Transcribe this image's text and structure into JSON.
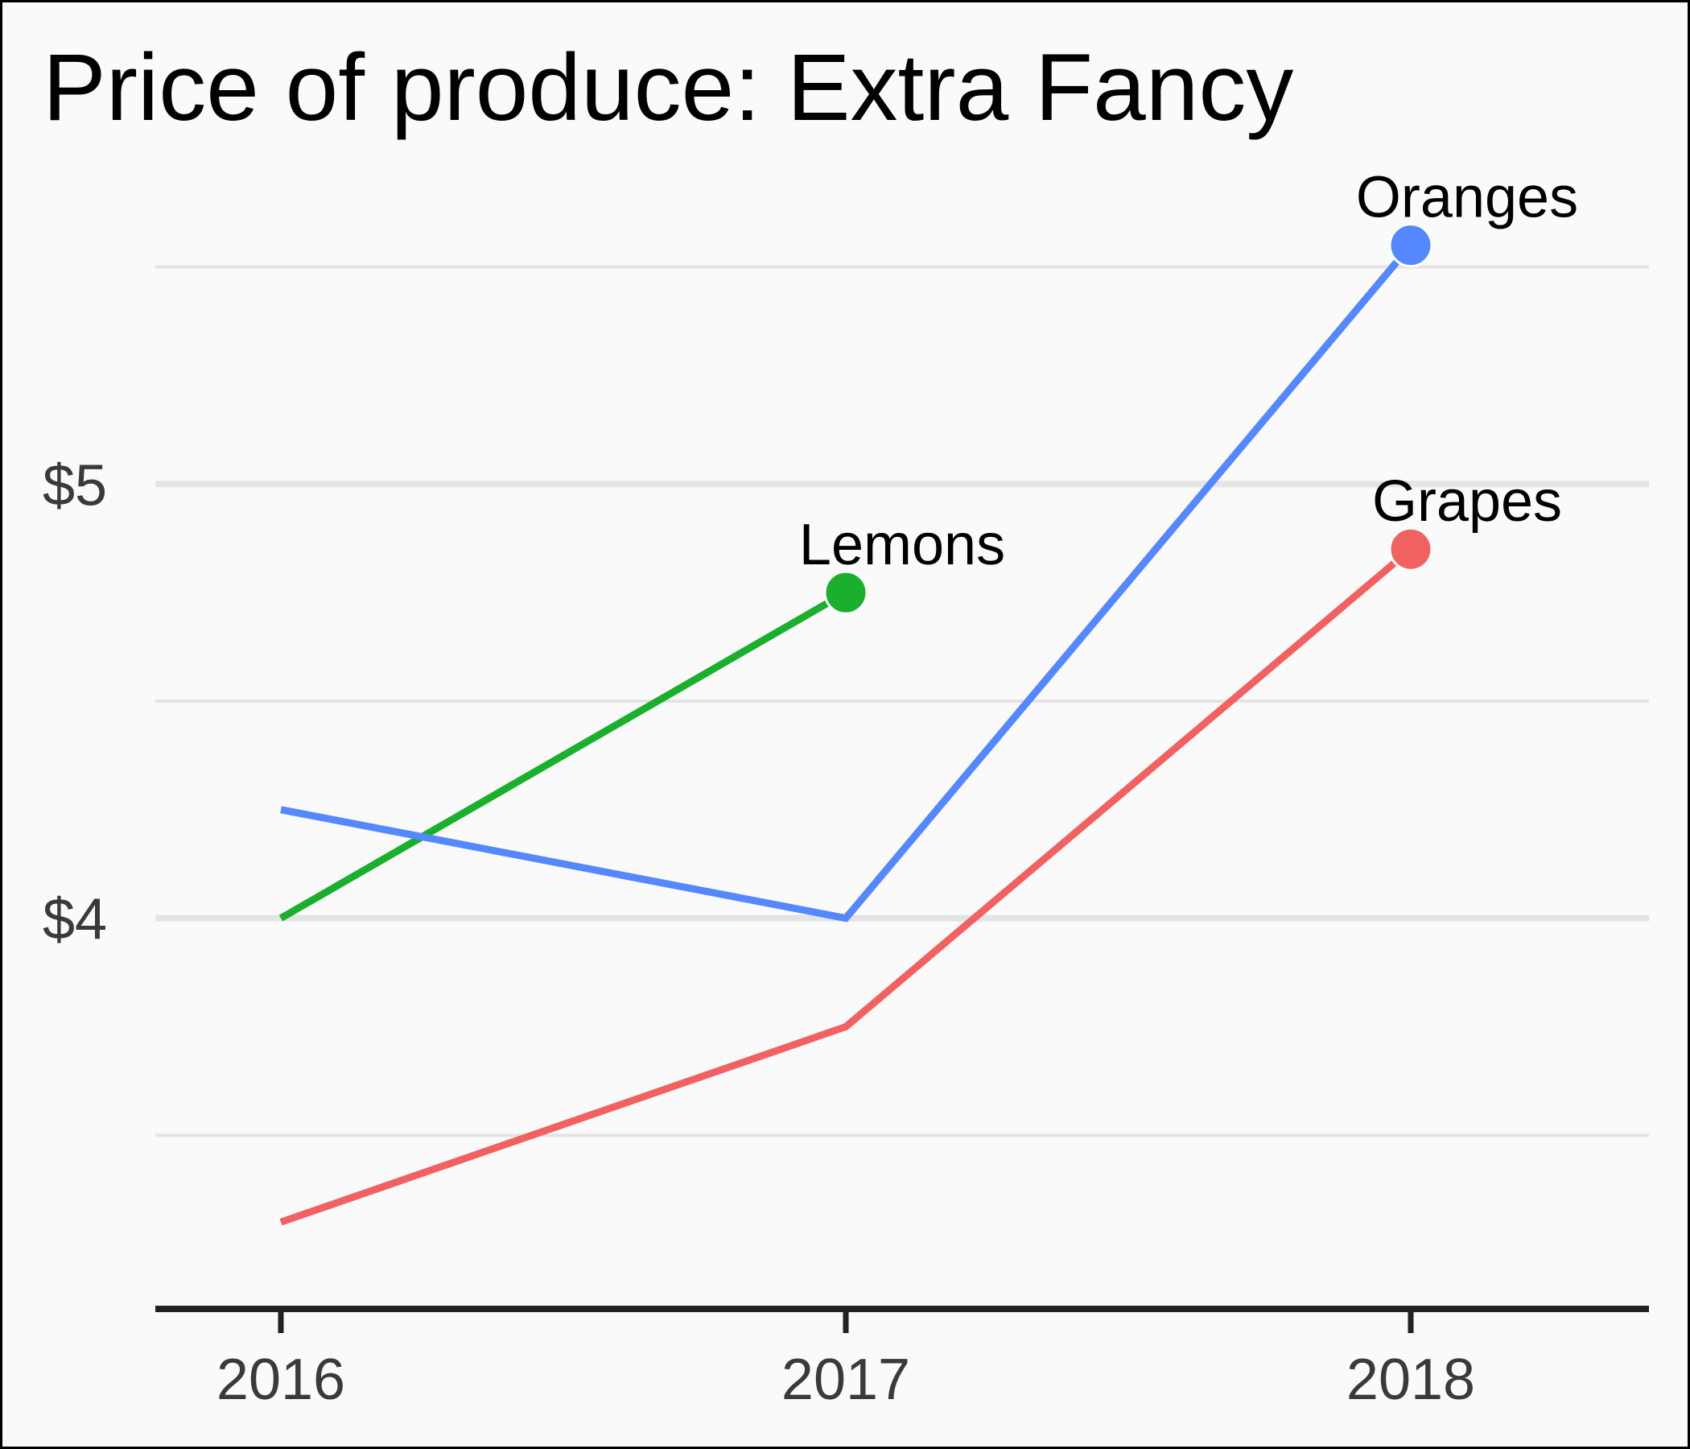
{
  "chart_data": {
    "type": "line",
    "title": "Price of produce: Extra Fancy",
    "xlabel": "",
    "ylabel": "",
    "x": [
      2016,
      2017,
      2018
    ],
    "x_tick_labels": [
      "2016",
      "2017",
      "2018"
    ],
    "y_ticks": [
      4,
      5
    ],
    "y_tick_labels": [
      "$4",
      "$5"
    ],
    "y_minor_gridlines": [
      3.5,
      4.5,
      5.5
    ],
    "ylim": [
      3.1,
      5.72
    ],
    "grid": "horizontal",
    "legend": "direct labels at series end points",
    "series": [
      {
        "name": "Lemons",
        "color": "#1aaf2c",
        "values": [
          4.0,
          4.75,
          null
        ]
      },
      {
        "name": "Oranges",
        "color": "#5588ff",
        "values": [
          4.25,
          4.0,
          5.55
        ]
      },
      {
        "name": "Grapes",
        "color": "#f26161",
        "values": [
          3.3,
          3.75,
          4.85
        ]
      }
    ]
  }
}
